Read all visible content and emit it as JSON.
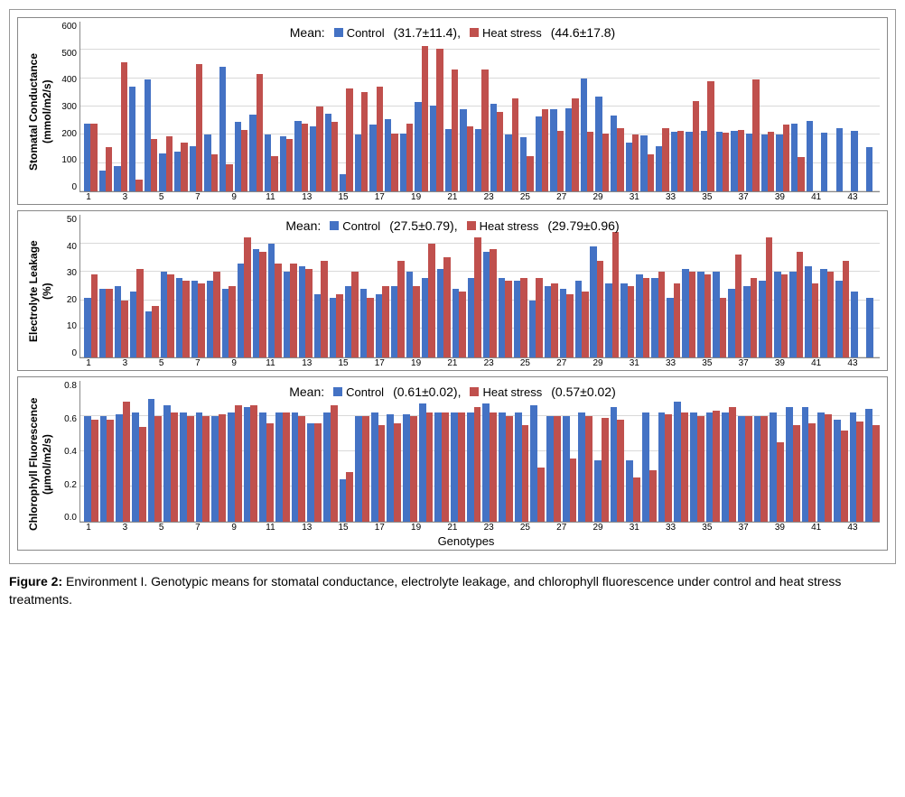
{
  "colors": {
    "control": "#4472c4",
    "heat": "#c0504d",
    "grid": "#d9d9d9",
    "border": "#888888",
    "bg": "#ffffff"
  },
  "x_label": "Genotypes",
  "legend": {
    "control": "Control",
    "heat": "Heat stress"
  },
  "x_tick_labels": [
    "1",
    "",
    "3",
    "",
    "5",
    "",
    "7",
    "",
    "9",
    "",
    "11",
    "",
    "13",
    "",
    "15",
    "",
    "17",
    "",
    "19",
    "",
    "21",
    "",
    "23",
    "",
    "25",
    "",
    "27",
    "",
    "29",
    "",
    "31",
    "",
    "33",
    "",
    "35",
    "",
    "37",
    "",
    "39",
    "",
    "41",
    "",
    "43",
    ""
  ],
  "charts": [
    {
      "id": "stomatal",
      "title": "Stomatal Conductance",
      "unit": "(mmol/m2/s)",
      "mean_label": "Mean:",
      "mean_control": "(31.7±11.4),",
      "mean_heat": "(44.6±17.8)",
      "ylim": [
        0,
        600
      ],
      "ytick_step": 100,
      "control": [
        240,
        72,
        90,
        370,
        395,
        135,
        140,
        160,
        200,
        440,
        245,
        270,
        200,
        195,
        250,
        230,
        275,
        62,
        200,
        235,
        256,
        205,
        315,
        302,
        220,
        290,
        220,
        310,
        200,
        190,
        265,
        290,
        295,
        400,
        335,
        268,
        172,
        198,
        160,
        210,
        210,
        215,
        212,
        215,
        205,
        200,
        200,
        240,
        250,
        208,
        225,
        215,
        155
      ],
      "heat": [
        240,
        158,
        455,
        42,
        185,
        195,
        172,
        450,
        132,
        95,
        218,
        415,
        126,
        185,
        240,
        300,
        245,
        365,
        352,
        370,
        205,
        240,
        515,
        505,
        430,
        230,
        430,
        282,
        328,
        125,
        292,
        215,
        330,
        212,
        205,
        225,
        200,
        130,
        225,
        215,
        320,
        388,
        208,
        218,
        395,
        210,
        235,
        120
      ]
    },
    {
      "id": "electrolyte",
      "title": "Electrolyte Leakage",
      "unit": "(%)",
      "mean_label": "Mean:",
      "mean_control": "(27.5±0.79),",
      "mean_heat": "(29.79±0.96)",
      "ylim": [
        0,
        50
      ],
      "ytick_step": 10,
      "control": [
        21,
        24,
        25,
        23,
        16,
        30,
        28,
        27,
        27,
        24,
        33,
        38,
        40,
        30,
        32,
        22,
        21,
        25,
        24,
        22,
        25,
        30,
        28,
        31,
        24,
        28,
        37,
        28,
        27,
        20,
        25,
        24,
        27,
        39,
        26,
        26,
        29,
        28,
        21,
        31,
        30,
        30,
        24,
        25,
        27,
        30,
        30,
        32,
        31,
        27,
        23,
        21
      ],
      "heat": [
        29,
        24,
        20,
        31,
        18,
        29,
        27,
        26,
        30,
        25,
        42,
        37,
        33,
        33,
        31,
        34,
        22,
        30,
        21,
        25,
        34,
        25,
        40,
        35,
        23,
        42,
        38,
        27,
        28,
        28,
        26,
        22,
        23,
        34,
        44,
        25,
        28,
        30,
        26,
        30,
        29,
        21,
        36,
        28,
        42,
        29,
        37,
        26,
        30,
        34
      ]
    },
    {
      "id": "chlorophyll",
      "title": "Chlorophyll Fluorescence",
      "unit": "(µmol/m2/s)",
      "mean_label": "Mean:",
      "mean_control": "(0.61±0.02),",
      "mean_heat": "(0.57±0.02)",
      "ylim": [
        0,
        0.8
      ],
      "ytick_step": 0.2,
      "control": [
        0.6,
        0.6,
        0.61,
        0.62,
        0.7,
        0.66,
        0.62,
        0.62,
        0.6,
        0.62,
        0.65,
        0.62,
        0.62,
        0.62,
        0.56,
        0.62,
        0.24,
        0.6,
        0.62,
        0.61,
        0.61,
        0.67,
        0.62,
        0.62,
        0.62,
        0.67,
        0.62,
        0.62,
        0.66,
        0.6,
        0.6,
        0.62,
        0.35,
        0.65,
        0.35,
        0.62,
        0.62,
        0.68,
        0.62,
        0.62,
        0.62,
        0.6,
        0.6,
        0.62,
        0.65,
        0.65,
        0.62,
        0.58,
        0.62,
        0.64
      ],
      "heat": [
        0.58,
        0.58,
        0.68,
        0.54,
        0.6,
        0.62,
        0.6,
        0.6,
        0.61,
        0.66,
        0.66,
        0.56,
        0.62,
        0.6,
        0.56,
        0.66,
        0.28,
        0.6,
        0.55,
        0.56,
        0.6,
        0.62,
        0.62,
        0.62,
        0.65,
        0.62,
        0.6,
        0.55,
        0.31,
        0.6,
        0.36,
        0.6,
        0.59,
        0.58,
        0.25,
        0.29,
        0.61,
        0.62,
        0.6,
        0.63,
        0.65,
        0.6,
        0.6,
        0.45,
        0.55,
        0.56,
        0.61,
        0.52,
        0.57,
        0.55
      ]
    }
  ],
  "caption_label": "Figure 2:",
  "caption_text": " Environment I. Genotypic means for stomatal conductance, electrolyte leakage, and chlorophyll fluorescence under control and heat stress treatments."
}
